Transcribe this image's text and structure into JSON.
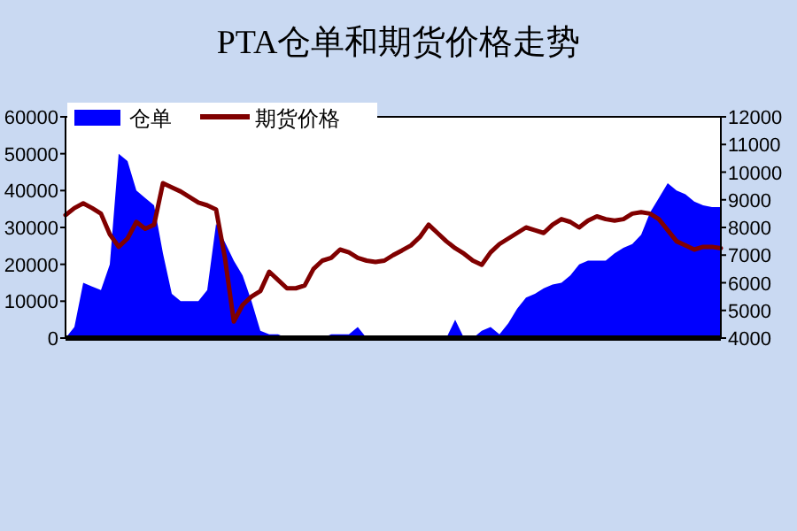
{
  "chart_data": {
    "type": "area",
    "title": "PTA仓单和期货价格走势",
    "categories": [
      null,
      null,
      null,
      null,
      null,
      null,
      null,
      null,
      null,
      null,
      null,
      null,
      null,
      null,
      null,
      null,
      null,
      null,
      null,
      null,
      null,
      null,
      null,
      null,
      null,
      null,
      null,
      null,
      null,
      null,
      null,
      null,
      null,
      null,
      null,
      null,
      null,
      null,
      null,
      null,
      null,
      null,
      null,
      null,
      null,
      null,
      null,
      null,
      null,
      null,
      null,
      null,
      null,
      null,
      null,
      null,
      null,
      null,
      null,
      null,
      null,
      null,
      null,
      null,
      null,
      null,
      null,
      null,
      null,
      null,
      null,
      null,
      null,
      null,
      null
    ],
    "series": [
      {
        "name": "仓单",
        "color": "#0000ff",
        "values": [
          0,
          3000,
          15000,
          14000,
          13000,
          20000,
          50000,
          48000,
          40000,
          38000,
          36000,
          23000,
          12000,
          10000,
          10000,
          10000,
          13000,
          31000,
          26000,
          21000,
          17000,
          10000,
          2000,
          1000,
          1000,
          0,
          0,
          0,
          0,
          0,
          1000,
          1000,
          1000,
          3000,
          0,
          0,
          0,
          0,
          0,
          0,
          0,
          0,
          0,
          0,
          5000,
          0,
          0,
          2000,
          3000,
          1000,
          4000,
          8000,
          11000,
          12000,
          13500,
          14500,
          15000,
          17000,
          20000,
          21000,
          21000,
          21000,
          23000,
          24500,
          25500,
          28000,
          34000,
          38000,
          42000,
          40000,
          39000,
          37000,
          36000,
          35500,
          35500
        ]
      },
      {
        "name": "期货价格",
        "type": "line",
        "axis": "y2",
        "color": "#800000",
        "values": [
          8450,
          8700,
          8870,
          8700,
          8500,
          7750,
          7300,
          7600,
          8200,
          7950,
          8100,
          9600,
          9450,
          9300,
          9100,
          8900,
          8800,
          8650,
          6900,
          4600,
          5200,
          5500,
          5700,
          6400,
          6100,
          5800,
          5800,
          5900,
          6500,
          6800,
          6900,
          7200,
          7100,
          6900,
          6800,
          6750,
          6800,
          7000,
          7170,
          7350,
          7650,
          8100,
          7800,
          7500,
          7250,
          7050,
          6800,
          6650,
          7100,
          7400,
          7600,
          7800,
          8000,
          7900,
          7800,
          8100,
          8300,
          8200,
          8000,
          8250,
          8400,
          8300,
          8250,
          8300,
          8500,
          8550,
          8500,
          8300,
          7900,
          7500,
          7350,
          7200,
          7300,
          7300,
          7250
        ]
      }
    ],
    "ylim": [
      0,
      60000
    ],
    "yticks": [
      0,
      10000,
      20000,
      30000,
      40000,
      50000,
      60000
    ],
    "y2lim": [
      4000,
      12000
    ],
    "y2ticks": [
      4000,
      5000,
      6000,
      7000,
      8000,
      9000,
      10000,
      11000,
      12000
    ],
    "legend": "top left",
    "tick_labels": "y"
  }
}
